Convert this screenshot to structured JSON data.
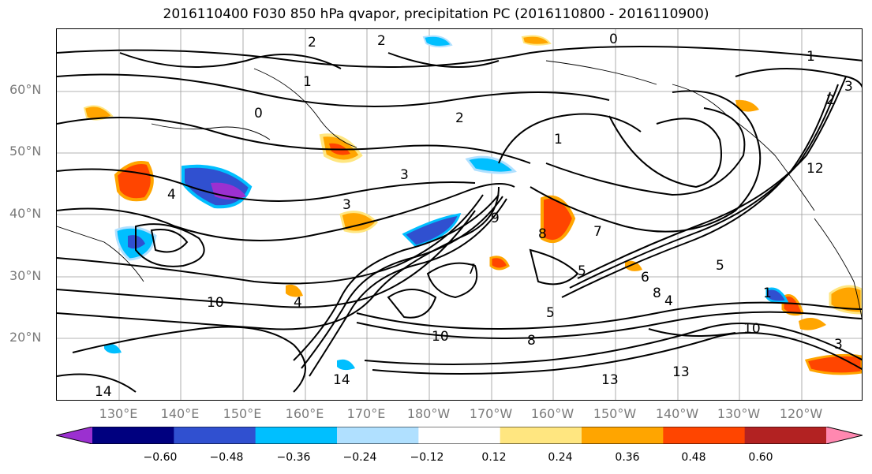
{
  "title": "2016110400 F030 850 hPa qvapor, precipitation PC (2016110800 - 2016110900)",
  "lat_labels": [
    "60°N",
    "50°N",
    "40°N",
    "30°N",
    "20°N"
  ],
  "lon_labels": [
    "130°E",
    "140°E",
    "150°E",
    "160°E",
    "170°E",
    "180°W",
    "170°W",
    "160°W",
    "150°W",
    "140°W",
    "130°W",
    "120°W"
  ],
  "colorbar": {
    "colors": [
      "#9b30d0",
      "#00007f",
      "#3050d0",
      "#00bfff",
      "#b0e0ff",
      "#ffffff",
      "#ffe680",
      "#ffa500",
      "#ff4500",
      "#b22222",
      "#ff88b0"
    ],
    "ticks": [
      "−0.60",
      "−0.48",
      "−0.36",
      "−0.24",
      "−0.12",
      "0.12",
      "0.24",
      "0.36",
      "0.48",
      "0.60"
    ]
  },
  "contour_labels": [
    "2",
    "0",
    "1",
    "2",
    "3",
    "2",
    "1",
    "0",
    "1",
    "2",
    "3",
    "4",
    "3",
    "5",
    "6",
    "5",
    "4",
    "7",
    "10",
    "9",
    "8",
    "5",
    "13",
    "14",
    "14",
    "10",
    "13",
    "1",
    "3",
    "8",
    "10",
    "12",
    "7",
    "4",
    "8"
  ]
}
